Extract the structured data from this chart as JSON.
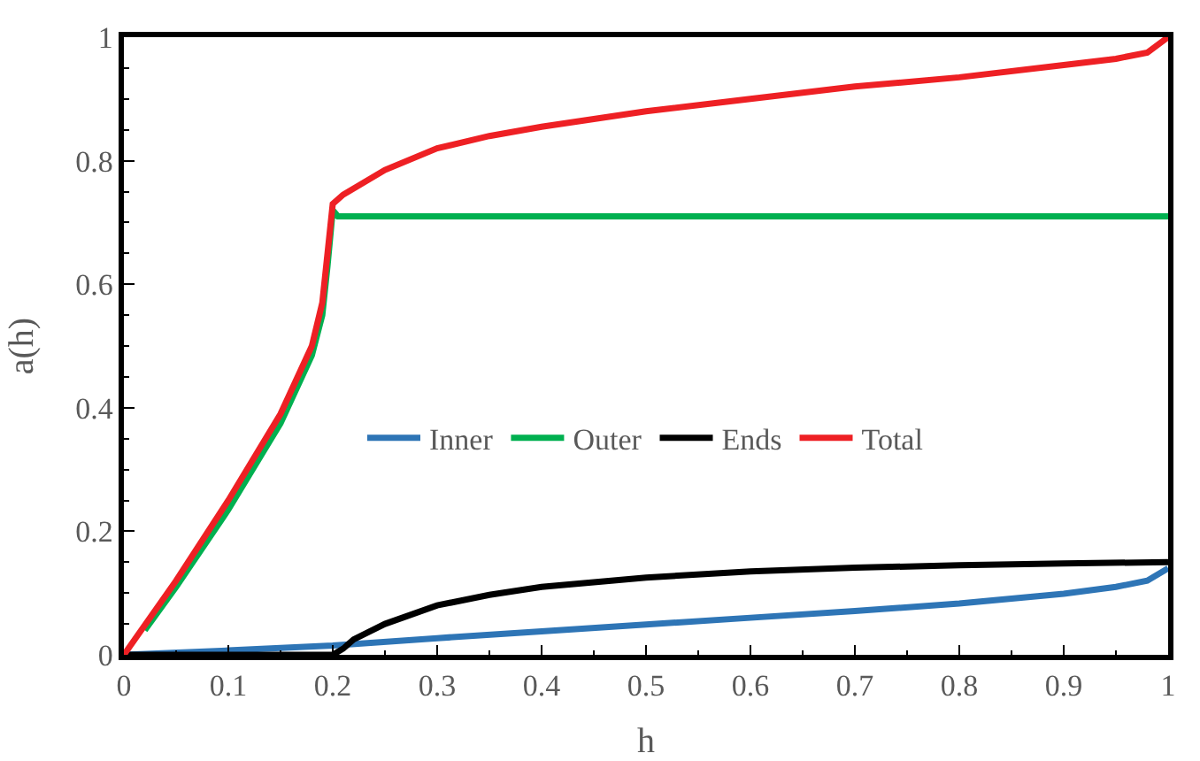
{
  "chart_data": {
    "type": "line",
    "xlabel": "h",
    "ylabel": "a(h)",
    "xlim": [
      0,
      1
    ],
    "ylim": [
      0,
      1
    ],
    "xticks": [
      0,
      0.1,
      0.2,
      0.3,
      0.4,
      0.5,
      0.6,
      0.7,
      0.8,
      0.9,
      1
    ],
    "yticks": [
      0,
      0.2,
      0.4,
      0.6,
      0.8,
      1
    ],
    "grid": false,
    "legend": "center",
    "marker": "none",
    "line_style": "solid",
    "series": [
      {
        "name": "Inner",
        "color": "#2e75b6",
        "x": [
          0,
          0.1,
          0.2,
          0.3,
          0.4,
          0.5,
          0.6,
          0.7,
          0.8,
          0.9,
          0.95,
          0.98,
          1
        ],
        "values": [
          0,
          0.007,
          0.015,
          0.027,
          0.038,
          0.049,
          0.06,
          0.071,
          0.083,
          0.099,
          0.11,
          0.12,
          0.14
        ]
      },
      {
        "name": "Outer",
        "color": "#00b050",
        "x": [
          0.02,
          0.05,
          0.1,
          0.15,
          0.18,
          0.19,
          0.195,
          0.2,
          0.205,
          0.21,
          0.3,
          0.5,
          0.7,
          0.9,
          1
        ],
        "values": [
          0.04,
          0.11,
          0.235,
          0.375,
          0.485,
          0.55,
          0.63,
          0.72,
          0.71,
          0.71,
          0.71,
          0.71,
          0.71,
          0.71,
          0.71
        ]
      },
      {
        "name": "Ends",
        "color": "#000000",
        "x": [
          0,
          0.2,
          0.21,
          0.22,
          0.25,
          0.3,
          0.35,
          0.4,
          0.5,
          0.6,
          0.7,
          0.8,
          0.9,
          1
        ],
        "values": [
          0,
          0,
          0.01,
          0.025,
          0.05,
          0.08,
          0.097,
          0.11,
          0.125,
          0.135,
          0.141,
          0.145,
          0.148,
          0.15
        ]
      },
      {
        "name": "Total",
        "color": "#ee2024",
        "x": [
          0,
          0.05,
          0.1,
          0.15,
          0.18,
          0.19,
          0.195,
          0.2,
          0.21,
          0.25,
          0.3,
          0.35,
          0.4,
          0.5,
          0.6,
          0.7,
          0.8,
          0.9,
          0.95,
          0.98,
          1
        ],
        "values": [
          0,
          0.12,
          0.25,
          0.39,
          0.5,
          0.57,
          0.65,
          0.73,
          0.745,
          0.785,
          0.82,
          0.84,
          0.855,
          0.88,
          0.9,
          0.92,
          0.935,
          0.955,
          0.965,
          0.975,
          1
        ]
      }
    ]
  }
}
